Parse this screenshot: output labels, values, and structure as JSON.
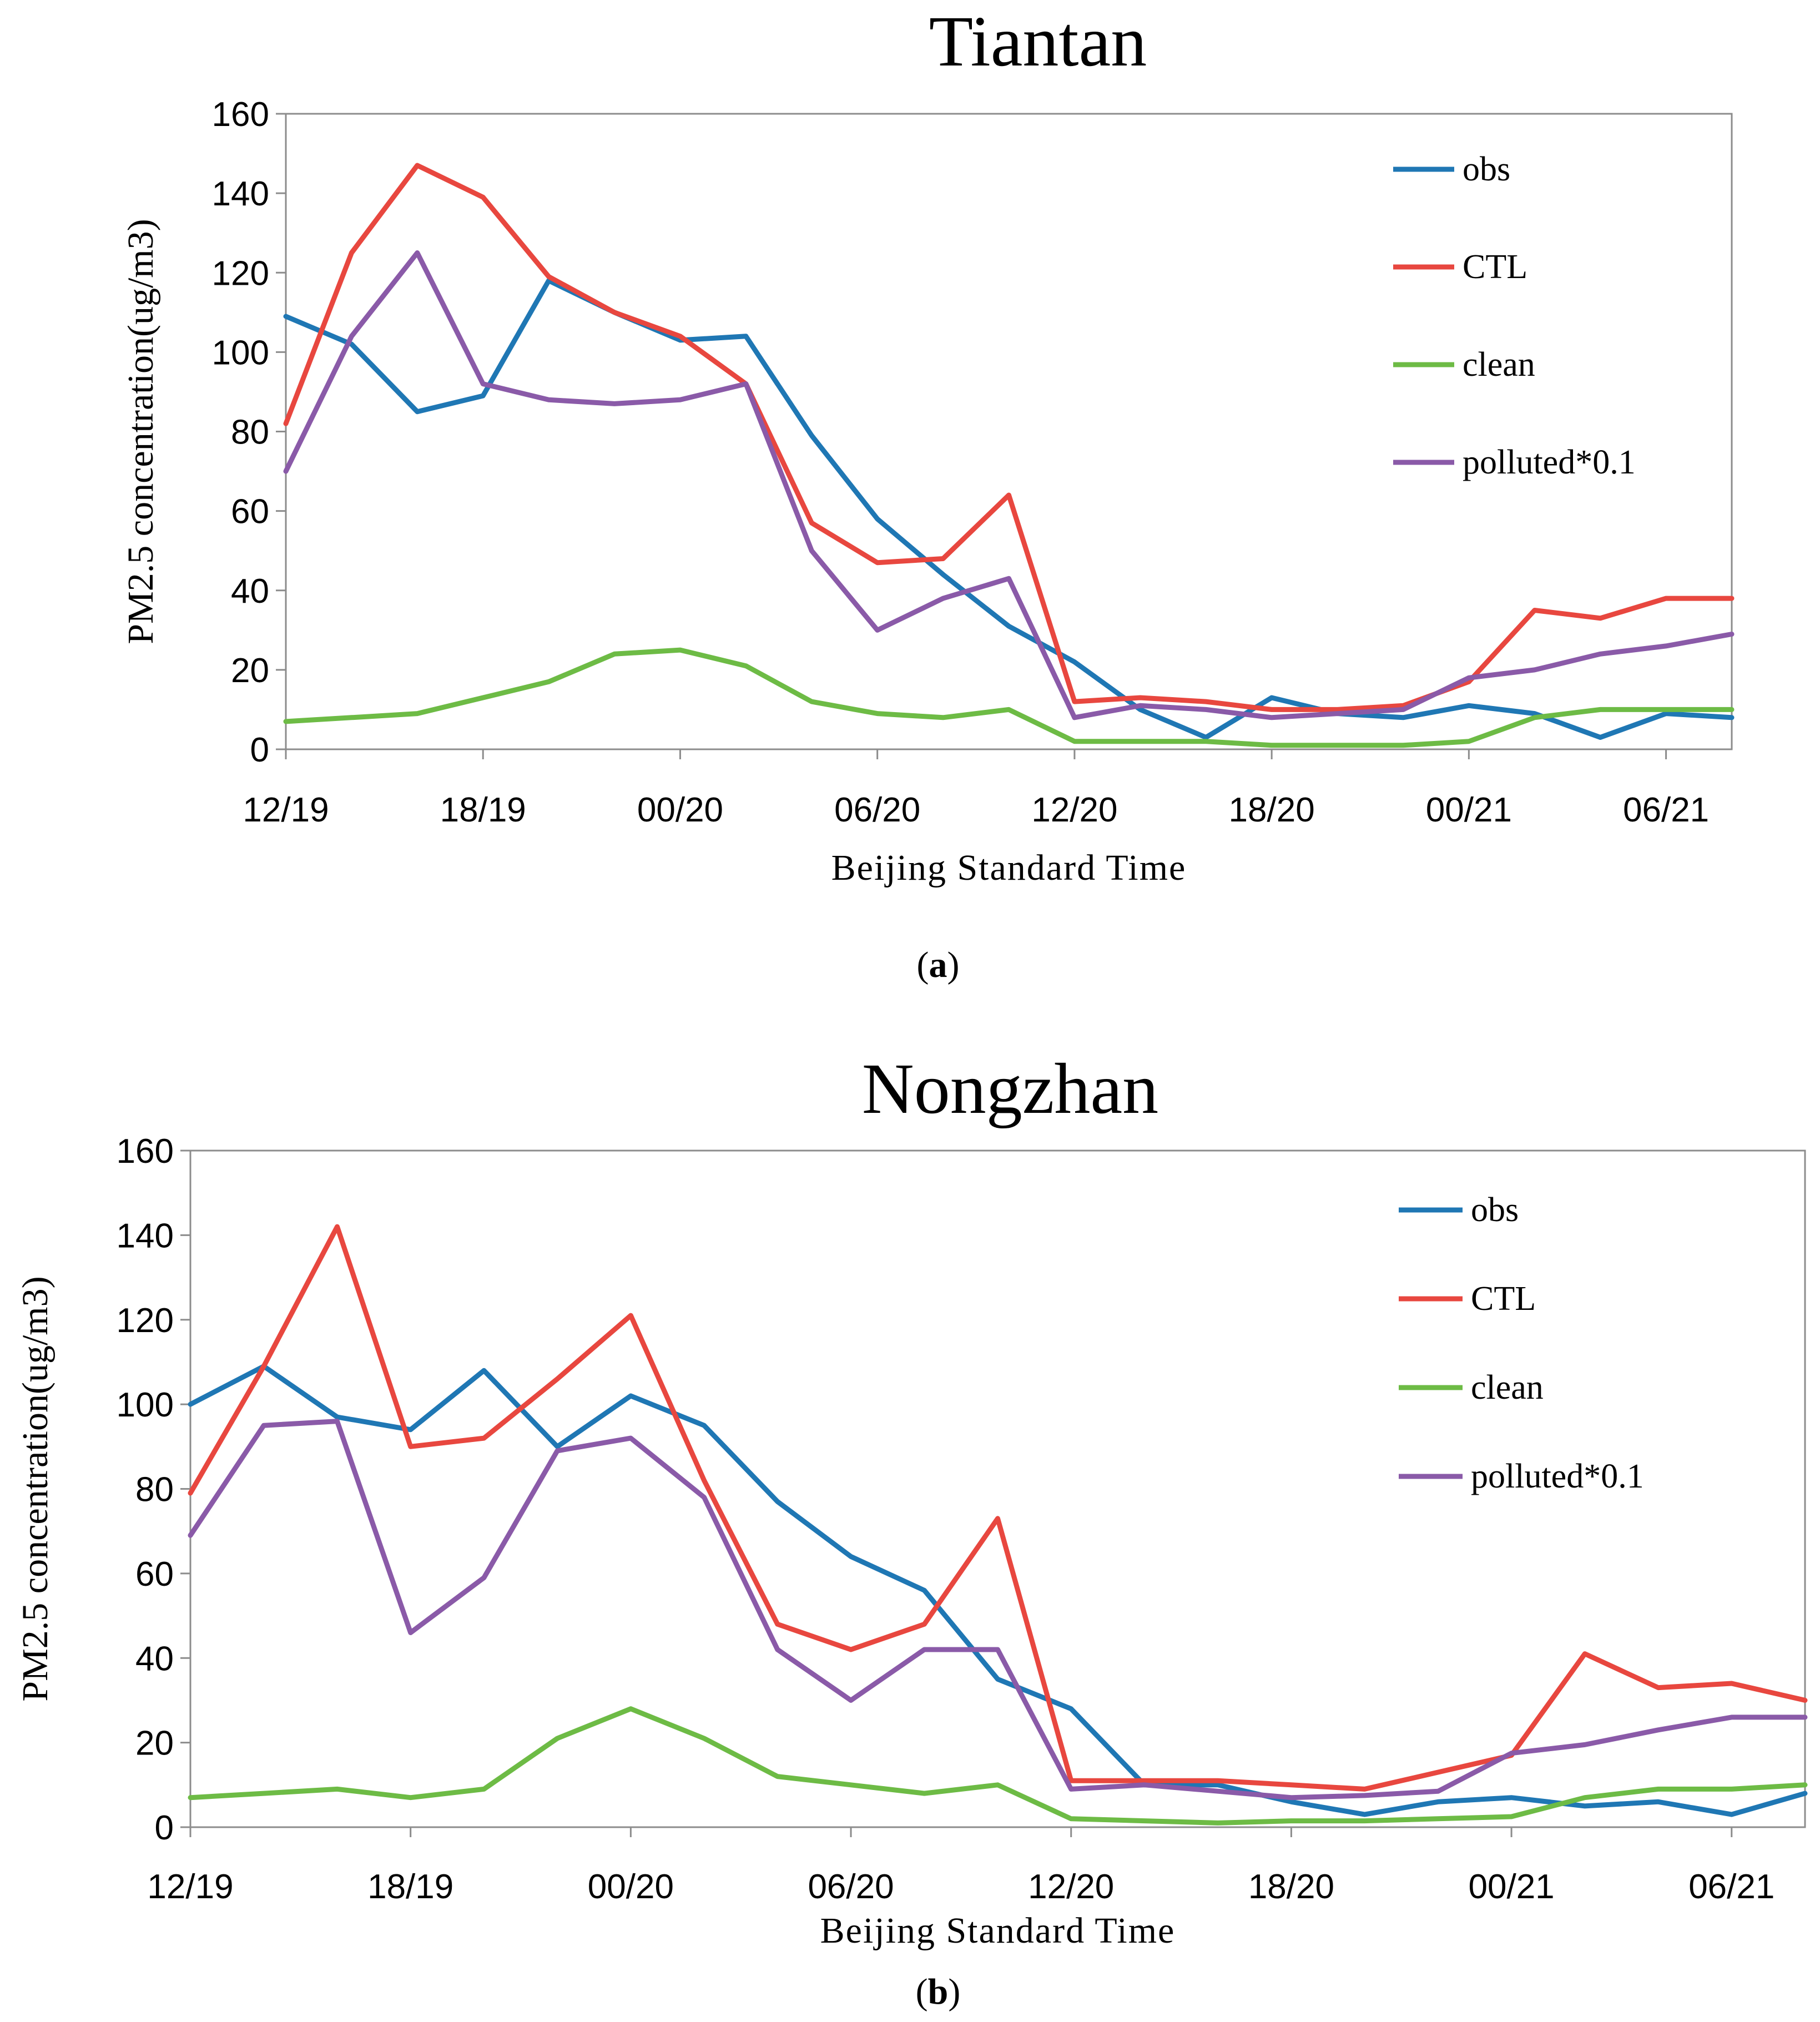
{
  "chart_data": [
    {
      "type": "line",
      "title": "Tiantan",
      "caption": "a",
      "xlabel": "Beijing Standard Time",
      "ylabel": "PM2.5 concentration(ug/m3)",
      "ylim": [
        0,
        160
      ],
      "yticks": [
        "0",
        "20",
        "40",
        "60",
        "80",
        "100",
        "120",
        "140",
        "160"
      ],
      "xtick_labels": [
        "12/19",
        "18/19",
        "00/20",
        "06/20",
        "12/20",
        "18/20",
        "00/21",
        "06/21"
      ],
      "x_hours": [
        0,
        2,
        4,
        6,
        8,
        10,
        12,
        14,
        16,
        18,
        20,
        22,
        24,
        26,
        28,
        30,
        32,
        34,
        36,
        38,
        40,
        42,
        44
      ],
      "series": [
        {
          "name": "obs",
          "color": "#1f77b4",
          "values": [
            109,
            102,
            85,
            89,
            118,
            110,
            103,
            104,
            79,
            58,
            44,
            31,
            22,
            10,
            3,
            13,
            9,
            8,
            11,
            9,
            3,
            9,
            8
          ]
        },
        {
          "name": "CTL",
          "color": "#e8473f",
          "values": [
            82,
            125,
            147,
            139,
            119,
            110,
            104,
            92,
            57,
            47,
            48,
            64,
            12,
            13,
            12,
            10,
            10,
            11,
            17,
            35,
            33,
            38,
            38
          ]
        },
        {
          "name": "clean",
          "color": "#6dbb45",
          "values": [
            7,
            8,
            9,
            13,
            17,
            24,
            25,
            21,
            12,
            9,
            8,
            10,
            2,
            2,
            2,
            1,
            1,
            1,
            2,
            8,
            10,
            10,
            10
          ]
        },
        {
          "name": "polluted*0.1",
          "color": "#8a5aa8",
          "values": [
            70,
            104,
            125,
            92,
            88,
            87,
            88,
            92,
            50,
            30,
            38,
            43,
            8,
            11,
            10,
            8,
            9,
            10,
            18,
            20,
            24,
            26,
            29
          ]
        }
      ]
    },
    {
      "type": "line",
      "title": "Nongzhan",
      "caption": "b",
      "xlabel": "Beijing Standard Time",
      "ylabel": "PM2.5 concentration(ug/m3)",
      "ylim": [
        0,
        160
      ],
      "yticks": [
        "0",
        "20",
        "40",
        "60",
        "80",
        "100",
        "120",
        "140",
        "160"
      ],
      "xtick_labels": [
        "12/19",
        "18/19",
        "00/20",
        "06/20",
        "12/20",
        "18/20",
        "00/21",
        "06/21"
      ],
      "x_hours": [
        0,
        2,
        4,
        6,
        8,
        10,
        12,
        14,
        16,
        18,
        20,
        22,
        24,
        26,
        28,
        30,
        32,
        34,
        36,
        38,
        40,
        42,
        44
      ],
      "series": [
        {
          "name": "obs",
          "color": "#1f77b4",
          "values": [
            100,
            109,
            97,
            94,
            108,
            90,
            102,
            95,
            77,
            64,
            56,
            35,
            28,
            10,
            10,
            6,
            3,
            6,
            7,
            5,
            6,
            3,
            8
          ]
        },
        {
          "name": "CTL",
          "color": "#e8473f",
          "values": [
            79,
            109,
            142,
            90,
            92,
            106,
            121,
            82,
            48,
            42,
            48,
            73,
            11,
            11,
            11,
            10,
            9,
            13,
            17,
            41,
            33,
            34,
            30
          ]
        },
        {
          "name": "clean",
          "color": "#6dbb45",
          "values": [
            7,
            8,
            9,
            7,
            9,
            21,
            28,
            21,
            12,
            10,
            8,
            10,
            2,
            1.5,
            1,
            1.5,
            1.5,
            2,
            2.5,
            7,
            9,
            9,
            10
          ]
        },
        {
          "name": "polluted*0.1",
          "color": "#8a5aa8",
          "values": [
            69,
            95,
            96,
            46,
            59,
            89,
            92,
            78,
            42,
            30,
            42,
            42,
            9,
            10,
            8.5,
            7,
            7.5,
            8.5,
            17.5,
            19.5,
            23,
            26,
            26
          ]
        }
      ]
    }
  ]
}
